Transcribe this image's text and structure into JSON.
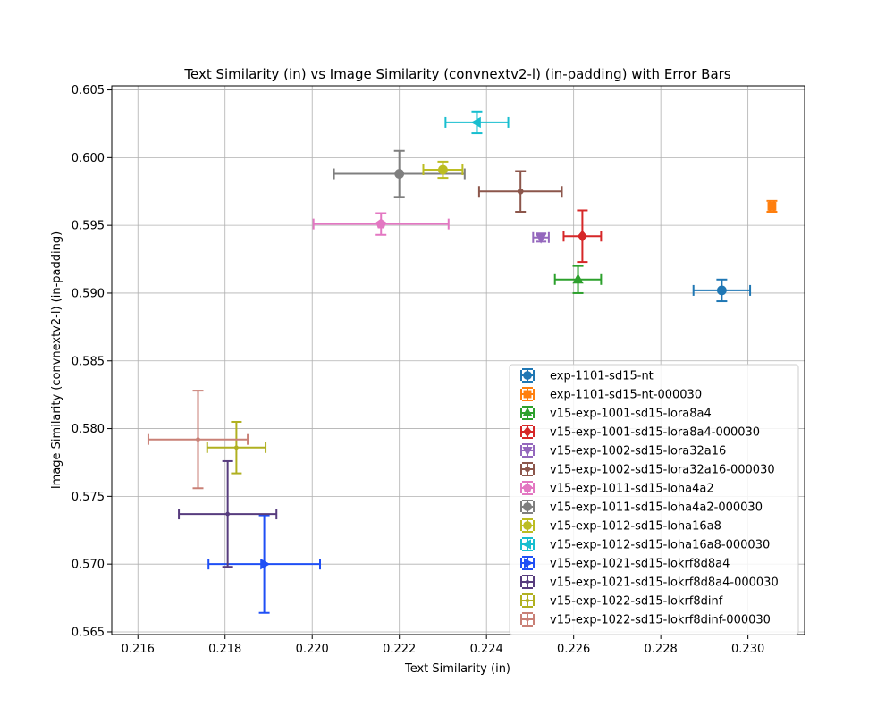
{
  "chart_data": {
    "type": "scatter",
    "title": "Text Similarity (in) vs Image Similarity (convnextv2-l) (in-padding) with Error Bars",
    "xlabel": "Text Similarity (in)",
    "ylabel": "Image Similarity (convnextv2-l) (in-padding)",
    "xlim": [
      0.2154,
      0.2313
    ],
    "ylim": [
      0.5648,
      0.6053
    ],
    "xticks": [
      "0.216",
      "0.218",
      "0.220",
      "0.222",
      "0.224",
      "0.226",
      "0.228",
      "0.230"
    ],
    "yticks": [
      "0.565",
      "0.570",
      "0.575",
      "0.580",
      "0.585",
      "0.590",
      "0.595",
      "0.600",
      "0.605"
    ],
    "grid": true,
    "legend_position": "lower-right",
    "series": [
      {
        "name": "exp-1101-sd15-nt",
        "color": "#1f77b4",
        "marker": "circle",
        "x": 0.2294,
        "y": 0.5902,
        "xerr": 0.00065,
        "yerr": 0.0008
      },
      {
        "name": "exp-1101-sd15-nt-000030",
        "color": "#ff7f0e",
        "marker": "square",
        "x": 0.23055,
        "y": 0.5964,
        "xerr": 5e-05,
        "yerr": 0.0004
      },
      {
        "name": "v15-exp-1001-sd15-lora8a4",
        "color": "#2ca02c",
        "marker": "triangle-up",
        "x": 0.2261,
        "y": 0.591,
        "xerr": 0.00053,
        "yerr": 0.001
      },
      {
        "name": "v15-exp-1001-sd15-lora8a4-000030",
        "color": "#d62728",
        "marker": "diamond",
        "x": 0.2262,
        "y": 0.5942,
        "xerr": 0.00043,
        "yerr": 0.0019
      },
      {
        "name": "v15-exp-1002-sd15-lora32a16",
        "color": "#9467bd",
        "marker": "triangle-down",
        "x": 0.22525,
        "y": 0.5941,
        "xerr": 0.00018,
        "yerr": 0.0003
      },
      {
        "name": "v15-exp-1002-sd15-lora32a16-000030",
        "color": "#8c564b",
        "marker": "dot",
        "x": 0.22478,
        "y": 0.5975,
        "xerr": 0.00095,
        "yerr": 0.0015
      },
      {
        "name": "v15-exp-1011-sd15-loha4a2",
        "color": "#e377c2",
        "marker": "pentagon",
        "x": 0.22158,
        "y": 0.5951,
        "xerr": 0.00155,
        "yerr": 0.0008
      },
      {
        "name": "v15-exp-1011-sd15-loha4a2-000030",
        "color": "#7f7f7f",
        "marker": "circle",
        "x": 0.222,
        "y": 0.5988,
        "xerr": 0.0015,
        "yerr": 0.0017
      },
      {
        "name": "v15-exp-1012-sd15-loha16a8",
        "color": "#bcbd22",
        "marker": "circle",
        "x": 0.223,
        "y": 0.5991,
        "xerr": 0.00045,
        "yerr": 0.0006
      },
      {
        "name": "v15-exp-1012-sd15-loha16a8-000030",
        "color": "#17becf",
        "marker": "triangle-left",
        "x": 0.22378,
        "y": 0.6026,
        "xerr": 0.00072,
        "yerr": 0.0008
      },
      {
        "name": "v15-exp-1021-sd15-lokrf8d8a4",
        "color": "#1f4ff5",
        "marker": "triangle-right",
        "x": 0.2189,
        "y": 0.57,
        "xerr": 0.00128,
        "yerr": 0.0036
      },
      {
        "name": "v15-exp-1021-sd15-lokrf8d8a4-000030",
        "color": "#573c7e",
        "marker": "small-dot",
        "x": 0.21806,
        "y": 0.5737,
        "xerr": 0.00112,
        "yerr": 0.0039
      },
      {
        "name": "v15-exp-1022-sd15-lokrf8dinf",
        "color": "#b0b020",
        "marker": "small-dot",
        "x": 0.21826,
        "y": 0.5786,
        "xerr": 0.00067,
        "yerr": 0.0019
      },
      {
        "name": "v15-exp-1022-sd15-lokrf8dinf-000030",
        "color": "#c98076",
        "marker": "small-dot",
        "x": 0.21738,
        "y": 0.5792,
        "xerr": 0.00114,
        "yerr": 0.0036
      }
    ]
  }
}
